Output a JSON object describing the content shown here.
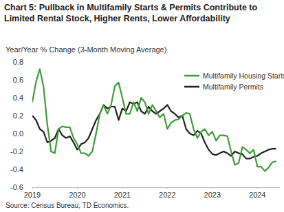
{
  "chart_data": {
    "type": "line",
    "title": "Chart 5: Pullback in Multifamily Starts & Permits Contribute to Limited Rental Stock, Higher Rents, Lower Affordability",
    "subtitle": "Year/Year % Change (3-Month Moving Average)",
    "source": "Source: Census Bureau, TD Economics.",
    "x": [
      2019,
      2019.083,
      2019.167,
      2019.25,
      2019.333,
      2019.417,
      2019.5,
      2019.583,
      2019.667,
      2019.75,
      2019.833,
      2019.917,
      2020,
      2020.083,
      2020.167,
      2020.25,
      2020.333,
      2020.417,
      2020.5,
      2020.583,
      2020.667,
      2020.75,
      2020.833,
      2020.917,
      2021,
      2021.083,
      2021.167,
      2021.25,
      2021.333,
      2021.417,
      2021.5,
      2021.583,
      2021.667,
      2021.75,
      2021.833,
      2021.917,
      2022,
      2022.083,
      2022.167,
      2022.25,
      2022.333,
      2022.417,
      2022.5,
      2022.583,
      2022.667,
      2022.75,
      2022.833,
      2022.917,
      2023,
      2023.083,
      2023.167,
      2023.25,
      2023.333,
      2023.417,
      2023.5,
      2023.583,
      2023.667,
      2023.75,
      2023.833,
      2023.917,
      2024,
      2024.083,
      2024.167,
      2024.25,
      2024.333,
      2024.417
    ],
    "series": [
      {
        "name": "Multifamily Housing Starts",
        "color": "#3c9e36",
        "values": [
          0.35,
          0.58,
          0.72,
          0.52,
          0.1,
          -0.2,
          -0.22,
          0.05,
          0.08,
          0.07,
          0.07,
          -0.05,
          -0.12,
          -0.22,
          -0.22,
          -0.25,
          -0.2,
          0.0,
          0.22,
          0.32,
          0.22,
          0.32,
          0.53,
          0.57,
          0.4,
          0.22,
          0.22,
          0.35,
          0.25,
          0.4,
          0.35,
          0.22,
          0.32,
          0.25,
          0.18,
          0.22,
          0.05,
          0.12,
          0.15,
          0.16,
          0.2,
          0.23,
          0.22,
          0.05,
          -0.05,
          0.02,
          0.05,
          -0.02,
          0.02,
          -0.08,
          -0.02,
          -0.02,
          -0.03,
          -0.2,
          -0.35,
          -0.33,
          -0.15,
          -0.18,
          -0.22,
          -0.18,
          -0.37,
          -0.37,
          -0.42,
          -0.38,
          -0.32,
          -0.31
        ]
      },
      {
        "name": "Multifamily Permits",
        "color": "#222222",
        "values": [
          0.2,
          0.15,
          0.05,
          0.02,
          -0.1,
          -0.08,
          -0.05,
          0.05,
          -0.02,
          -0.05,
          -0.03,
          -0.1,
          -0.18,
          -0.12,
          -0.1,
          -0.05,
          0.05,
          0.15,
          0.22,
          0.32,
          0.28,
          0.3,
          0.3,
          0.15,
          0.28,
          0.25,
          0.35,
          0.33,
          0.35,
          0.25,
          0.22,
          0.3,
          0.25,
          0.22,
          0.25,
          0.28,
          0.32,
          0.25,
          0.22,
          0.18,
          0.2,
          0.05,
          0.0,
          -0.02,
          0.03,
          0.0,
          -0.1,
          -0.18,
          -0.23,
          -0.24,
          -0.22,
          -0.2,
          -0.22,
          -0.25,
          -0.2,
          -0.22,
          -0.23,
          -0.28,
          -0.28,
          -0.26,
          -0.25,
          -0.22,
          -0.2,
          -0.18,
          -0.17,
          -0.17
        ]
      }
    ],
    "xlim": [
      2019,
      2024.5
    ],
    "xticks": [
      2019,
      2020,
      2021,
      2022,
      2023,
      2024
    ],
    "ylim": [
      -0.6,
      0.8
    ],
    "yticks": [
      -0.6,
      -0.4,
      -0.2,
      {
        "value": 0,
        "label": "0.0"
      },
      0.2,
      0.4,
      0.6,
      0.8
    ],
    "grid": false,
    "legend": "upper right"
  }
}
